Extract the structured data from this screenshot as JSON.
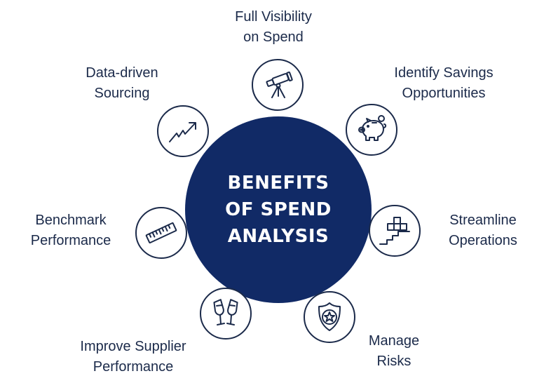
{
  "center": {
    "line1": "BENEFITS",
    "line2": "OF SPEND",
    "line3": "ANALYSIS"
  },
  "benefits": [
    {
      "icon": "telescope-icon",
      "line1": "Full Visibility",
      "line2": "on Spend"
    },
    {
      "icon": "piggy-bank-icon",
      "line1": "Identify Savings",
      "line2": "Opportunities"
    },
    {
      "icon": "stairs-blocks-icon",
      "line1": "Streamline",
      "line2": "Operations"
    },
    {
      "icon": "shield-star-icon",
      "line1": "Manage",
      "line2": "Risks"
    },
    {
      "icon": "champagne-glasses-icon",
      "line1": "Improve Supplier",
      "line2": "Performance"
    },
    {
      "icon": "ruler-icon",
      "line1": "Benchmark",
      "line2": "Performance"
    },
    {
      "icon": "trend-arrow-icon",
      "line1": "Data-driven",
      "line2": "Sourcing"
    }
  ],
  "colors": {
    "navy": "#112a66",
    "ink": "#1b2a4a",
    "background": "#ffffff"
  }
}
